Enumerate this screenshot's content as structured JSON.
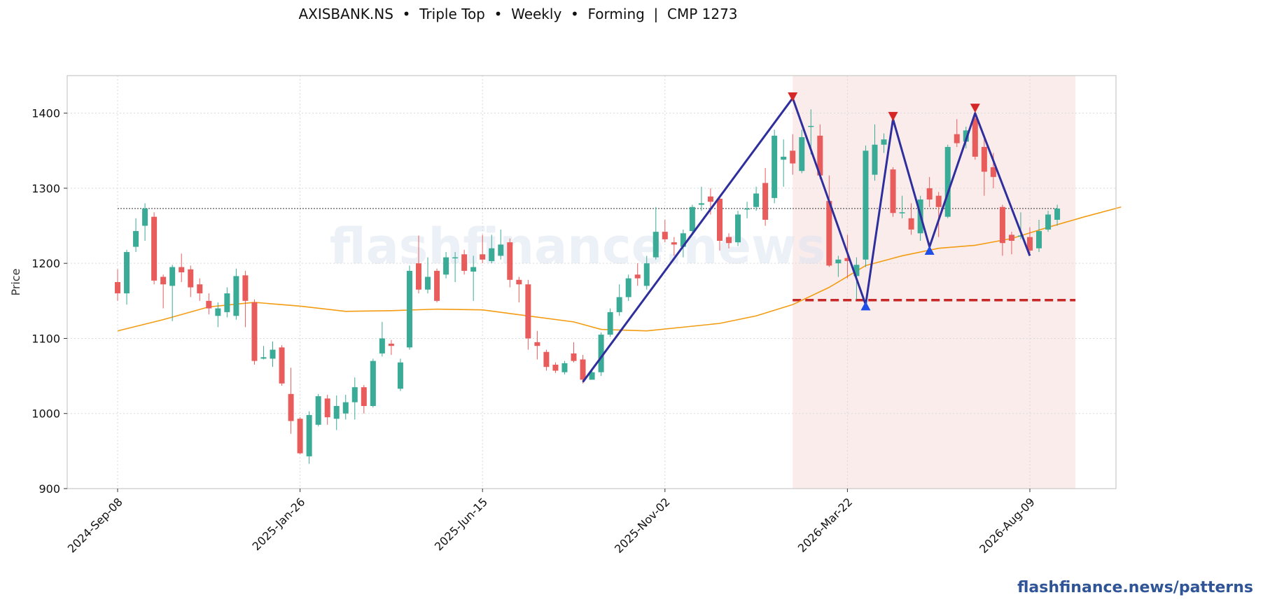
{
  "chart_data": {
    "type": "candlestick",
    "title": "AXISBANK.NS  •  Triple Top  •  Weekly  •  Forming  |  CMP 1273",
    "ylabel": "Price",
    "ylim": [
      900,
      1450
    ],
    "y_ticks": [
      900,
      1000,
      1100,
      1200,
      1300,
      1400
    ],
    "x_tick_labels": [
      "2024-Sep-08",
      "2025-Jan-26",
      "2025-Jun-15",
      "2025-Nov-02",
      "2026-Mar-22",
      "2026-Aug-09"
    ],
    "x_tick_indices": [
      0,
      20,
      40,
      60,
      80,
      100
    ],
    "grid": true,
    "candles": [
      [
        1175,
        1160,
        1192,
        1150
      ],
      [
        1160,
        1215,
        1218,
        1145
      ],
      [
        1222,
        1243,
        1260,
        1215
      ],
      [
        1250,
        1273,
        1280,
        1230
      ],
      [
        1262,
        1177,
        1268,
        1172
      ],
      [
        1182,
        1172,
        1185,
        1140
      ],
      [
        1170,
        1195,
        1198,
        1123
      ],
      [
        1195,
        1188,
        1213,
        1175
      ],
      [
        1192,
        1168,
        1197,
        1155
      ],
      [
        1172,
        1160,
        1180,
        1150
      ],
      [
        1150,
        1140,
        1160,
        1132
      ],
      [
        1130,
        1140,
        1148,
        1115
      ],
      [
        1135,
        1160,
        1168,
        1128
      ],
      [
        1130,
        1183,
        1193,
        1125
      ],
      [
        1184,
        1150,
        1190,
        1115
      ],
      [
        1148,
        1070,
        1152,
        1065
      ],
      [
        1073,
        1075,
        1090,
        1072
      ],
      [
        1073,
        1085,
        1096,
        1062
      ],
      [
        1088,
        1040,
        1091,
        1037
      ],
      [
        1026,
        990,
        1061,
        973
      ],
      [
        993,
        947,
        995,
        946
      ],
      [
        943,
        998,
        1003,
        933
      ],
      [
        985,
        1023,
        1026,
        983
      ],
      [
        1020,
        995,
        1025,
        985
      ],
      [
        993,
        1010,
        1024,
        978
      ],
      [
        1000,
        1015,
        1025,
        992
      ],
      [
        1015,
        1035,
        1048,
        992
      ],
      [
        1035,
        1010,
        1038,
        1000
      ],
      [
        1010,
        1070,
        1073,
        1008
      ],
      [
        1080,
        1100,
        1122,
        1076
      ],
      [
        1093,
        1090,
        1098,
        1078
      ],
      [
        1033,
        1068,
        1073,
        1030
      ],
      [
        1088,
        1190,
        1197,
        1085
      ],
      [
        1200,
        1165,
        1237,
        1160
      ],
      [
        1165,
        1182,
        1208,
        1160
      ],
      [
        1190,
        1150,
        1193,
        1148
      ],
      [
        1185,
        1208,
        1215,
        1180
      ],
      [
        1207,
        1208,
        1215,
        1175
      ],
      [
        1212,
        1190,
        1218,
        1185
      ],
      [
        1189,
        1195,
        1210,
        1150
      ],
      [
        1212,
        1205,
        1238,
        1200
      ],
      [
        1203,
        1220,
        1238,
        1200
      ],
      [
        1210,
        1225,
        1245,
        1205
      ],
      [
        1228,
        1178,
        1233,
        1168
      ],
      [
        1178,
        1172,
        1182,
        1148
      ],
      [
        1172,
        1100,
        1178,
        1085
      ],
      [
        1095,
        1090,
        1110,
        1072
      ],
      [
        1082,
        1062,
        1085,
        1057
      ],
      [
        1065,
        1057,
        1068,
        1054
      ],
      [
        1055,
        1067,
        1070,
        1052
      ],
      [
        1080,
        1070,
        1095,
        1068
      ],
      [
        1072,
        1045,
        1078,
        1040
      ],
      [
        1045,
        1055,
        1060,
        1045
      ],
      [
        1055,
        1105,
        1108,
        1050
      ],
      [
        1105,
        1135,
        1140,
        1102
      ],
      [
        1135,
        1155,
        1172,
        1130
      ],
      [
        1155,
        1180,
        1185,
        1150
      ],
      [
        1185,
        1180,
        1200,
        1170
      ],
      [
        1170,
        1200,
        1210,
        1165
      ],
      [
        1208,
        1242,
        1275,
        1205
      ],
      [
        1242,
        1232,
        1258,
        1228
      ],
      [
        1228,
        1225,
        1235,
        1210
      ],
      [
        1222,
        1240,
        1245,
        1208
      ],
      [
        1243,
        1275,
        1278,
        1240
      ],
      [
        1278,
        1280,
        1302,
        1270
      ],
      [
        1289,
        1282,
        1300,
        1265
      ],
      [
        1286,
        1230,
        1290,
        1217
      ],
      [
        1235,
        1227,
        1240,
        1220
      ],
      [
        1228,
        1265,
        1270,
        1223
      ],
      [
        1273,
        1273,
        1282,
        1260
      ],
      [
        1275,
        1293,
        1302,
        1270
      ],
      [
        1307,
        1258,
        1327,
        1250
      ],
      [
        1287,
        1370,
        1378,
        1280
      ],
      [
        1338,
        1342,
        1365,
        1302
      ],
      [
        1350,
        1333,
        1372,
        1318
      ],
      [
        1323,
        1368,
        1378,
        1320
      ],
      [
        1382,
        1383,
        1405,
        1345
      ],
      [
        1370,
        1317,
        1385,
        1312
      ],
      [
        1283,
        1197,
        1317,
        1195
      ],
      [
        1200,
        1205,
        1210,
        1182
      ],
      [
        1207,
        1203,
        1238,
        1180
      ],
      [
        1183,
        1198,
        1208,
        1152
      ],
      [
        1205,
        1350,
        1357,
        1195
      ],
      [
        1318,
        1358,
        1385,
        1310
      ],
      [
        1358,
        1365,
        1373,
        1347
      ],
      [
        1325,
        1267,
        1328,
        1262
      ],
      [
        1267,
        1268,
        1290,
        1260
      ],
      [
        1260,
        1245,
        1280,
        1238
      ],
      [
        1240,
        1285,
        1290,
        1230
      ],
      [
        1300,
        1285,
        1315,
        1275
      ],
      [
        1290,
        1275,
        1295,
        1235
      ],
      [
        1262,
        1355,
        1358,
        1260
      ],
      [
        1372,
        1360,
        1392,
        1355
      ],
      [
        1362,
        1377,
        1382,
        1353
      ],
      [
        1393,
        1342,
        1396,
        1338
      ],
      [
        1355,
        1322,
        1370,
        1290
      ],
      [
        1328,
        1315,
        1347,
        1300
      ],
      [
        1275,
        1227,
        1278,
        1210
      ],
      [
        1238,
        1230,
        1242,
        1212
      ],
      [
        1237,
        1237,
        1268,
        1232
      ],
      [
        1235,
        1217,
        1248,
        1213
      ],
      [
        1220,
        1243,
        1258,
        1215
      ],
      [
        1245,
        1265,
        1270,
        1242
      ],
      [
        1258,
        1273,
        1278,
        1250
      ]
    ],
    "moving_average": [
      [
        0,
        1110
      ],
      [
        5,
        1125
      ],
      [
        10,
        1142
      ],
      [
        15,
        1148
      ],
      [
        20,
        1143
      ],
      [
        25,
        1136
      ],
      [
        30,
        1137
      ],
      [
        35,
        1139
      ],
      [
        40,
        1138
      ],
      [
        45,
        1130
      ],
      [
        50,
        1122
      ],
      [
        53,
        1112
      ],
      [
        58,
        1110
      ],
      [
        62,
        1115
      ],
      [
        66,
        1120
      ],
      [
        70,
        1130
      ],
      [
        74,
        1145
      ],
      [
        78,
        1168
      ],
      [
        82,
        1197
      ],
      [
        86,
        1210
      ],
      [
        90,
        1220
      ],
      [
        94,
        1224
      ],
      [
        98,
        1233
      ],
      [
        102,
        1248
      ],
      [
        106,
        1262
      ],
      [
        110,
        1275
      ]
    ],
    "pattern_line": [
      [
        51,
        1042
      ],
      [
        74,
        1420
      ],
      [
        82,
        1145
      ],
      [
        85,
        1392
      ],
      [
        89,
        1222
      ],
      [
        94,
        1400
      ],
      [
        100,
        1210
      ]
    ],
    "peak_markers": [
      [
        74,
        1422
      ],
      [
        85,
        1396
      ],
      [
        94,
        1407
      ]
    ],
    "trough_markers": [
      [
        82,
        1143
      ],
      [
        89,
        1217
      ]
    ],
    "shaded_region": [
      74,
      105
    ],
    "neckline": {
      "from": 74,
      "to": 105,
      "y": 1151
    },
    "cmp_line": 1273,
    "colors": {
      "up": "#3aab96",
      "down": "#e85c5c",
      "ma": "#f39c12",
      "pattern": "#2e2e9c",
      "peak": "#d62728",
      "trough": "#1f4fe6",
      "neckline": "#c62828",
      "shade": "#fbecec"
    },
    "watermark": "flashfinance.news"
  },
  "footer": {
    "brand": "flashfinance.news/patterns"
  }
}
